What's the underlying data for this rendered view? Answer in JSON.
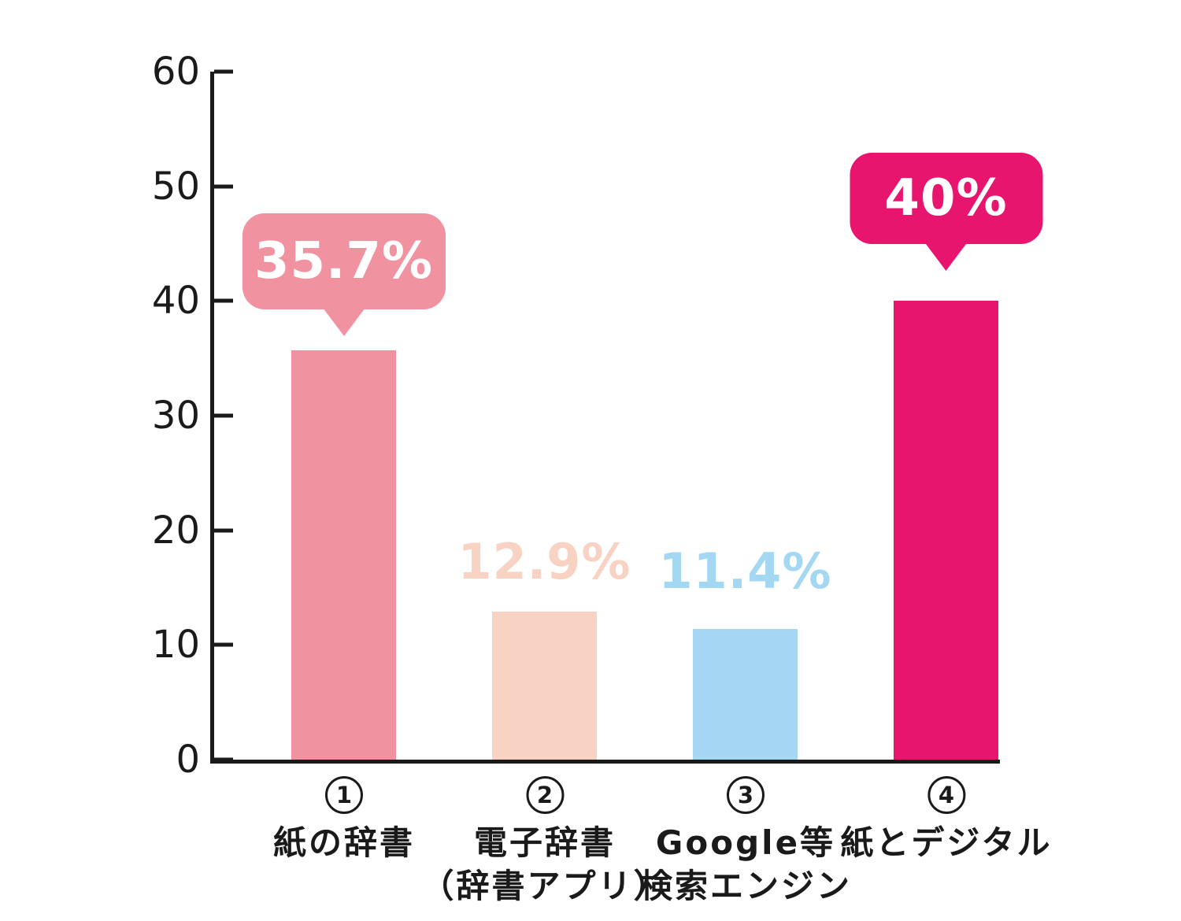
{
  "chart_data": {
    "type": "bar",
    "title": "",
    "unit": "%",
    "ylim": [
      0,
      60
    ],
    "yticks": [
      0,
      10,
      20,
      30,
      40,
      50,
      60
    ],
    "grid": false,
    "legend": false,
    "bars": [
      {
        "circled_number": "1",
        "category_lines": [
          "紙の辞書",
          ""
        ],
        "value": 35.7,
        "value_display": "35.7%",
        "color": "#F192A1",
        "value_label_style": "bubble",
        "value_text_color": "#FFFFFF"
      },
      {
        "circled_number": "2",
        "category_lines": [
          "電子辞書",
          "（辞書アプリ）"
        ],
        "value": 12.9,
        "value_display": "12.9%",
        "color": "#F8D2C3",
        "value_label_style": "plain"
      },
      {
        "circled_number": "3",
        "category_lines": [
          "Google等",
          "検索エンジン"
        ],
        "value": 11.4,
        "value_display": "11.4%",
        "color": "#A4D8F2",
        "value_label_style": "plain"
      },
      {
        "circled_number": "4",
        "category_lines": [
          "紙とデジタル",
          ""
        ],
        "value": 40,
        "value_display": "40%",
        "color": "#E7156E",
        "value_label_style": "bubble",
        "value_text_color": "#FFFFFF"
      }
    ]
  },
  "colors": {
    "axis": "#1A1A1A",
    "text": "#1A1A1A",
    "background": "#FFFFFF"
  }
}
